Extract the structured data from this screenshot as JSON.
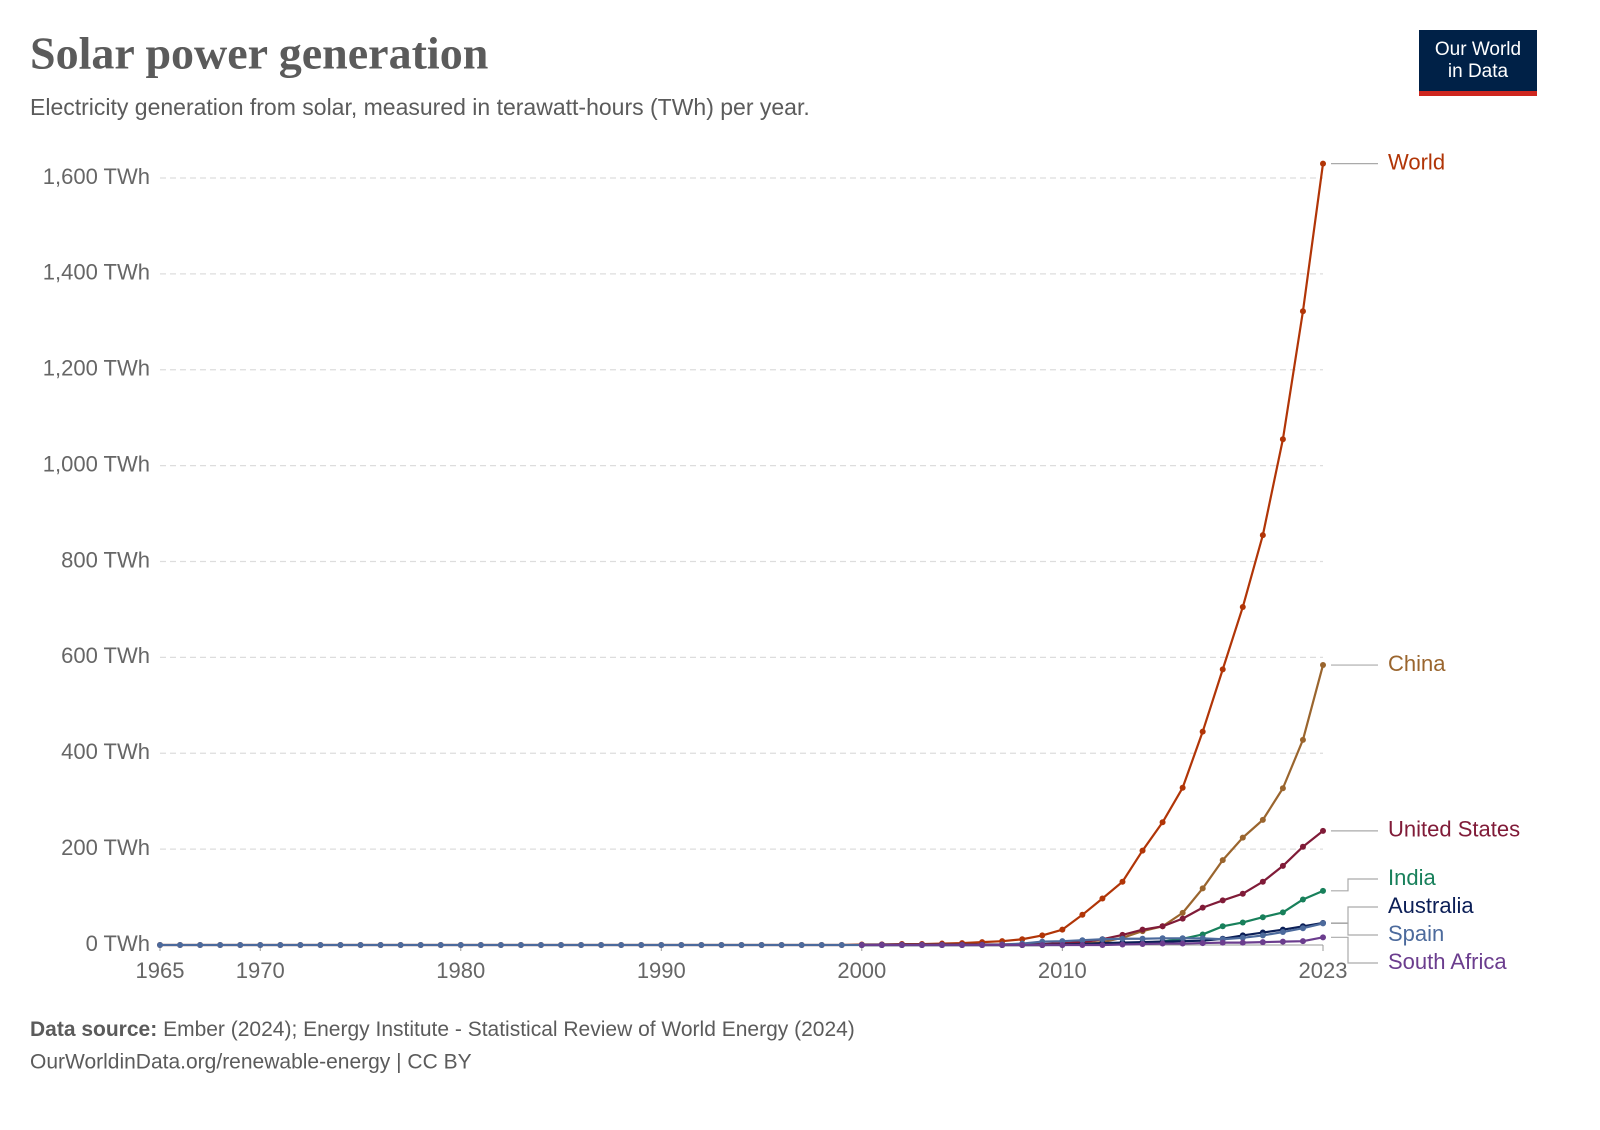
{
  "chart_data": {
    "type": "line",
    "title": "Solar power generation",
    "subtitle": "Electricity generation from solar, measured in terawatt-hours (TWh) per year.",
    "logo": [
      "Our World",
      "in Data"
    ],
    "source_label": "Data source:",
    "source": "Ember (2024); Energy Institute - Statistical Review of World Energy (2024)",
    "url": "OurWorldinData.org/renewable-energy | CC BY",
    "x": [
      1965,
      1966,
      1967,
      1968,
      1969,
      1970,
      1971,
      1972,
      1973,
      1974,
      1975,
      1976,
      1977,
      1978,
      1979,
      1980,
      1981,
      1982,
      1983,
      1984,
      1985,
      1986,
      1987,
      1988,
      1989,
      1990,
      1991,
      1992,
      1993,
      1994,
      1995,
      1996,
      1997,
      1998,
      1999,
      2000,
      2001,
      2002,
      2003,
      2004,
      2005,
      2006,
      2007,
      2008,
      2009,
      2010,
      2011,
      2012,
      2013,
      2014,
      2015,
      2016,
      2017,
      2018,
      2019,
      2020,
      2021,
      2022,
      2023
    ],
    "xlim": [
      1965,
      2023
    ],
    "xticks": [
      1965,
      1970,
      1980,
      1990,
      2000,
      2010,
      2023
    ],
    "ylim": [
      0,
      1600
    ],
    "yticks": [
      {
        "value": 0,
        "label": "0 TWh"
      },
      {
        "value": 200,
        "label": "200 TWh"
      },
      {
        "value": 400,
        "label": "400 TWh"
      },
      {
        "value": 600,
        "label": "600 TWh"
      },
      {
        "value": 800,
        "label": "800 TWh"
      },
      {
        "value": 1000,
        "label": "1,000 TWh"
      },
      {
        "value": 1200,
        "label": "1,200 TWh"
      },
      {
        "value": 1400,
        "label": "1,400 TWh"
      },
      {
        "value": 1600,
        "label": "1,600 TWh"
      }
    ],
    "grid": true,
    "series": [
      {
        "name": "World",
        "color": "#b13507",
        "values": [
          0,
          0,
          0,
          0,
          0,
          0,
          0,
          0,
          0,
          0,
          0,
          0,
          0,
          0,
          0,
          0,
          0,
          0,
          0,
          0,
          0,
          0,
          0,
          0,
          0,
          0,
          0,
          0,
          0,
          0,
          0,
          0,
          0,
          0,
          0,
          1,
          1,
          2,
          2,
          3,
          4,
          6,
          8,
          12,
          20,
          32,
          63,
          97,
          132,
          197,
          256,
          328,
          445,
          575,
          705,
          855,
          1055,
          1322,
          1630
        ]
      },
      {
        "name": "China",
        "color": "#9a652e",
        "values": [
          null,
          null,
          null,
          null,
          null,
          null,
          null,
          null,
          null,
          null,
          null,
          null,
          null,
          null,
          null,
          null,
          null,
          null,
          null,
          null,
          null,
          null,
          null,
          null,
          null,
          null,
          null,
          null,
          null,
          null,
          null,
          null,
          null,
          null,
          null,
          0,
          0,
          0,
          0,
          0,
          0,
          0,
          0,
          0,
          0,
          1,
          3,
          6,
          15,
          29,
          39,
          67,
          118,
          177,
          224,
          261,
          327,
          428,
          584
        ]
      },
      {
        "name": "United States",
        "color": "#801b38",
        "values": [
          null,
          null,
          null,
          null,
          null,
          null,
          null,
          null,
          null,
          null,
          null,
          null,
          null,
          null,
          null,
          null,
          null,
          null,
          null,
          null,
          null,
          null,
          null,
          null,
          null,
          null,
          null,
          null,
          null,
          null,
          null,
          null,
          null,
          null,
          null,
          0,
          1,
          1,
          1,
          1,
          1,
          1,
          1,
          2,
          2,
          4,
          6,
          12,
          21,
          32,
          39,
          55,
          78,
          93,
          107,
          132,
          165,
          205,
          238
        ]
      },
      {
        "name": "India",
        "color": "#18805b",
        "values": [
          null,
          null,
          null,
          null,
          null,
          null,
          null,
          null,
          null,
          null,
          null,
          null,
          null,
          null,
          null,
          null,
          null,
          null,
          null,
          null,
          null,
          null,
          null,
          null,
          null,
          null,
          null,
          null,
          null,
          null,
          null,
          null,
          null,
          null,
          null,
          0,
          0,
          0,
          0,
          0,
          0,
          0,
          0,
          0,
          0,
          0,
          1,
          2,
          3,
          5,
          7,
          13,
          22,
          39,
          47,
          58,
          68,
          95,
          113
        ]
      },
      {
        "name": "Australia",
        "color": "#0c1f57",
        "values": [
          null,
          null,
          null,
          null,
          null,
          null,
          null,
          null,
          null,
          null,
          null,
          null,
          null,
          null,
          null,
          null,
          null,
          null,
          null,
          null,
          null,
          null,
          null,
          null,
          null,
          null,
          null,
          null,
          null,
          null,
          null,
          null,
          null,
          null,
          null,
          0,
          0,
          0,
          0,
          0,
          0,
          0,
          0,
          0,
          0,
          1,
          2,
          4,
          5,
          6,
          7,
          8,
          9,
          13,
          20,
          26,
          32,
          39,
          46
        ]
      },
      {
        "name": "Spain",
        "color": "#4c6a9c",
        "values": [
          0,
          0,
          0,
          0,
          0,
          0,
          0,
          0,
          0,
          0,
          0,
          0,
          0,
          0,
          0,
          0,
          0,
          0,
          0,
          0,
          0,
          0,
          0,
          0,
          0,
          0,
          0,
          0,
          0,
          0,
          0,
          0,
          0,
          0,
          0,
          0,
          0,
          0,
          0,
          0,
          0,
          0,
          1,
          3,
          7,
          8,
          10,
          12,
          13,
          13,
          14,
          14,
          14,
          12,
          15,
          20,
          27,
          35,
          45
        ]
      },
      {
        "name": "South Africa",
        "color": "#6b3d8e",
        "values": [
          null,
          null,
          null,
          null,
          null,
          null,
          null,
          null,
          null,
          null,
          null,
          null,
          null,
          null,
          null,
          null,
          null,
          null,
          null,
          null,
          null,
          null,
          null,
          null,
          null,
          null,
          null,
          null,
          null,
          null,
          null,
          null,
          null,
          null,
          null,
          0,
          0,
          0,
          0,
          0,
          0,
          0,
          0,
          0,
          0,
          0,
          0,
          0,
          1,
          2,
          3,
          3,
          4,
          5,
          5,
          6,
          7,
          8,
          16
        ]
      }
    ]
  }
}
